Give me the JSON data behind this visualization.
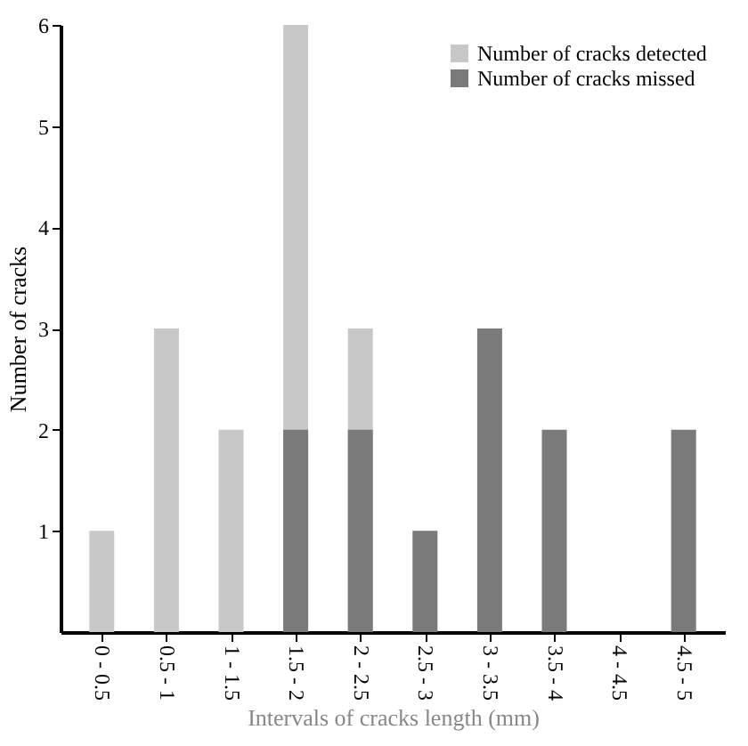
{
  "chart_data": {
    "type": "bar",
    "xlabel": "Intervals of cracks length (mm)",
    "ylabel": "Number of cracks",
    "categories": [
      "0 - 0.5",
      "0.5 - 1",
      "1 - 1.5",
      "1.5 - 2",
      "2 - 2.5",
      "2.5 - 3",
      "3 - 3.5",
      "3.5 - 4",
      "4 - 4.5",
      "4.5 - 5"
    ],
    "series": [
      {
        "name": "Number of cracks detected",
        "color": "#c8c8c8",
        "values": [
          1,
          3,
          2,
          6,
          3,
          null,
          null,
          null,
          null,
          null
        ]
      },
      {
        "name": "Number of cracks missed",
        "color": "#7a7a7a",
        "values": [
          null,
          null,
          null,
          2,
          2,
          1,
          3,
          2,
          null,
          2
        ]
      }
    ],
    "ylim": [
      0,
      6
    ],
    "yticks": [
      1,
      2,
      3,
      4,
      5,
      6
    ],
    "grid": false,
    "legend": "top right"
  }
}
